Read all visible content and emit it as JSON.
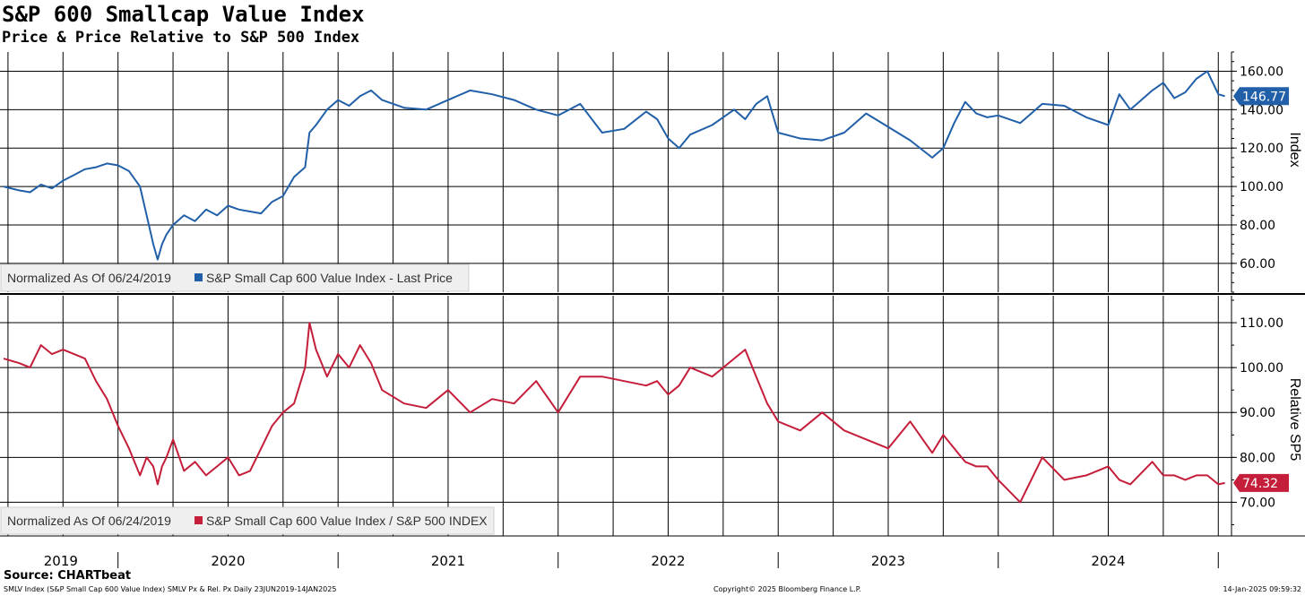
{
  "header": {
    "title": "S&P 600 Smallcap Value Index",
    "subtitle": "Price & Price Relative to S&P 500 Index"
  },
  "footer": {
    "source": "Source: CHARTbeat",
    "left": "SMLV Index (S&P Small Cap 600 Value Index) SMLV Px & Rel. Px  Daily 23JUN2019-14JAN2025",
    "center": "Copyright© 2025 Bloomberg Finance L.P.",
    "right": "14-Jan-2025 09:59:32"
  },
  "chart_data": [
    {
      "type": "line",
      "panel": "top",
      "ylabel": "Index",
      "ylim": [
        45,
        170
      ],
      "yticks": [
        60,
        80,
        100,
        120,
        140,
        160
      ],
      "ytick_labels": [
        "60.00",
        "80.00",
        "100.00",
        "120.00",
        "140.00",
        "160.00"
      ],
      "legend_note": "Normalized As Of 06/24/2019",
      "legend_position": "bottom-left",
      "last_value": "146.77",
      "grid": true,
      "color": "#2160a8",
      "series": [
        {
          "name": "S&P Small Cap 600 Value Index - Last Price",
          "x": [
            2019.48,
            2019.55,
            2019.6,
            2019.65,
            2019.7,
            2019.75,
            2019.8,
            2019.85,
            2019.9,
            2019.95,
            2020.0,
            2020.05,
            2020.1,
            2020.13,
            2020.16,
            2020.18,
            2020.2,
            2020.22,
            2020.25,
            2020.3,
            2020.35,
            2020.4,
            2020.45,
            2020.5,
            2020.55,
            2020.6,
            2020.65,
            2020.7,
            2020.75,
            2020.8,
            2020.85,
            2020.87,
            2020.9,
            2020.95,
            2021.0,
            2021.05,
            2021.1,
            2021.15,
            2021.2,
            2021.3,
            2021.4,
            2021.5,
            2021.6,
            2021.7,
            2021.8,
            2021.9,
            2022.0,
            2022.1,
            2022.2,
            2022.3,
            2022.4,
            2022.45,
            2022.5,
            2022.55,
            2022.6,
            2022.7,
            2022.8,
            2022.85,
            2022.9,
            2022.95,
            2023.0,
            2023.1,
            2023.2,
            2023.3,
            2023.4,
            2023.5,
            2023.6,
            2023.7,
            2023.75,
            2023.8,
            2023.85,
            2023.9,
            2023.95,
            2024.0,
            2024.1,
            2024.2,
            2024.3,
            2024.4,
            2024.5,
            2024.55,
            2024.6,
            2024.7,
            2024.75,
            2024.8,
            2024.85,
            2024.9,
            2024.95,
            2025.0,
            2025.03
          ],
          "y": [
            100,
            98,
            97,
            101,
            99,
            103,
            106,
            109,
            110,
            112,
            111,
            108,
            100,
            85,
            70,
            62,
            70,
            75,
            80,
            85,
            82,
            88,
            85,
            90,
            88,
            87,
            86,
            92,
            95,
            105,
            110,
            128,
            132,
            140,
            145,
            142,
            147,
            150,
            145,
            141,
            140,
            145,
            150,
            148,
            145,
            140,
            137,
            143,
            128,
            130,
            139,
            135,
            125,
            120,
            127,
            132,
            140,
            135,
            143,
            147,
            128,
            125,
            124,
            128,
            138,
            131,
            124,
            115,
            120,
            133,
            144,
            138,
            136,
            137,
            133,
            143,
            142,
            136,
            132,
            148,
            140,
            150,
            154,
            146,
            149,
            156,
            160,
            148,
            147
          ]
        }
      ]
    },
    {
      "type": "line",
      "panel": "bottom",
      "ylabel": "Relative SP5",
      "ylim": [
        62.5,
        116
      ],
      "yticks": [
        70,
        80,
        90,
        100,
        110
      ],
      "ytick_labels": [
        "70.00",
        "80.00",
        "90.00",
        "100.00",
        "110.00"
      ],
      "legend_note": "Normalized As Of 06/24/2019",
      "legend_position": "bottom-left",
      "last_value": "74.32",
      "grid": true,
      "color": "#c41e3a",
      "series": [
        {
          "name": "S&P Small Cap 600 Value Index / S&P 500 INDEX",
          "x": [
            2019.48,
            2019.55,
            2019.6,
            2019.65,
            2019.7,
            2019.75,
            2019.8,
            2019.85,
            2019.9,
            2019.95,
            2020.0,
            2020.05,
            2020.1,
            2020.13,
            2020.16,
            2020.18,
            2020.2,
            2020.22,
            2020.25,
            2020.3,
            2020.35,
            2020.4,
            2020.45,
            2020.5,
            2020.55,
            2020.6,
            2020.65,
            2020.7,
            2020.75,
            2020.8,
            2020.85,
            2020.87,
            2020.9,
            2020.95,
            2021.0,
            2021.05,
            2021.1,
            2021.15,
            2021.2,
            2021.3,
            2021.4,
            2021.5,
            2021.6,
            2021.7,
            2021.8,
            2021.9,
            2022.0,
            2022.1,
            2022.2,
            2022.3,
            2022.4,
            2022.45,
            2022.5,
            2022.55,
            2022.6,
            2022.7,
            2022.8,
            2022.85,
            2022.9,
            2022.95,
            2023.0,
            2023.1,
            2023.2,
            2023.3,
            2023.4,
            2023.5,
            2023.6,
            2023.7,
            2023.75,
            2023.8,
            2023.85,
            2023.9,
            2023.95,
            2024.0,
            2024.1,
            2024.2,
            2024.3,
            2024.4,
            2024.5,
            2024.55,
            2024.6,
            2024.7,
            2024.75,
            2024.8,
            2024.85,
            2024.9,
            2024.95,
            2025.0,
            2025.03
          ],
          "y": [
            102,
            101,
            100,
            105,
            103,
            104,
            103,
            102,
            97,
            93,
            87,
            82,
            76,
            80,
            78,
            74,
            78,
            80,
            84,
            77,
            79,
            76,
            78,
            80,
            76,
            77,
            82,
            87,
            90,
            92,
            100,
            110,
            104,
            98,
            103,
            100,
            105,
            101,
            95,
            92,
            91,
            95,
            90,
            93,
            92,
            97,
            90,
            98,
            98,
            97,
            96,
            97,
            94,
            96,
            100,
            98,
            102,
            104,
            98,
            92,
            88,
            86,
            90,
            86,
            84,
            82,
            88,
            81,
            85,
            82,
            79,
            78,
            78,
            75,
            70,
            80,
            75,
            76,
            78,
            75,
            74,
            79,
            76,
            76,
            75,
            76,
            76,
            74,
            74.3
          ]
        }
      ]
    }
  ],
  "x_axis": {
    "labels": [
      "2019",
      "2020",
      "2021",
      "2022",
      "2023",
      "2024"
    ],
    "year_boundaries": [
      2020,
      2021,
      2022,
      2023,
      2024,
      2025
    ],
    "quarter_start": 2019.5,
    "quarter_end": 2025.0
  }
}
